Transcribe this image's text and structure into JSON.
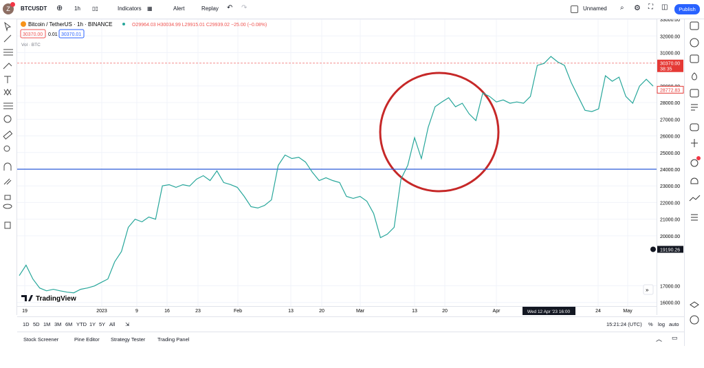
{
  "toolbar": {
    "avatar": "Z",
    "symbol": "BTCUSDT",
    "interval": "1h",
    "indicators": "Indicators",
    "alert": "Alert",
    "replay": "Replay",
    "layout_name": "Unnamed",
    "publish": "Publish"
  },
  "legend": {
    "title": "Bitcoin / TetherUS · 1h · BINANCE",
    "ohlc": "O29964.03 H30034.99 L29915.01 C29939.02 −25.00 (−0.08%)",
    "bid": "30370.00",
    "spread": "0.01",
    "ask": "30370.01",
    "volume": "Vol · BTC"
  },
  "logo": "TradingView",
  "chart_data": {
    "type": "line",
    "color": "#26a69a",
    "values": [
      17610,
      18240,
      17410,
      16870,
      16700,
      16790,
      16700,
      16620,
      16580,
      16790,
      16870,
      16990,
      17200,
      17410,
      18440,
      19060,
      20510,
      21000,
      20840,
      21130,
      21000,
      23000,
      23070,
      22910,
      23070,
      22990,
      23400,
      23610,
      23320,
      23900,
      23200,
      23080,
      22910,
      22370,
      21750,
      21670,
      21830,
      22160,
      24230,
      24850,
      24640,
      24720,
      24430,
      23820,
      23320,
      23490,
      23320,
      23200,
      22370,
      22250,
      22370,
      22080,
      21340,
      19890,
      20100,
      20510,
      23400,
      24230,
      25890,
      24640,
      26510,
      27750,
      28040,
      28290,
      27750,
      27960,
      27330,
      26920,
      28570,
      28370,
      28040,
      28160,
      27960,
      28040,
      27960,
      28370,
      30230,
      30350,
      30770,
      30440,
      30230,
      29190,
      28370,
      27540,
      27460,
      27620,
      29610,
      29280,
      29530,
      28370,
      27960,
      28990,
      29400,
      28990
    ],
    "ylim": [
      15700,
      33250
    ],
    "yticks": [
      {
        "value": 16000,
        "label": "16000.00"
      },
      {
        "value": 17000,
        "label": "17000.00"
      },
      {
        "value": 20000,
        "label": "20000.00"
      },
      {
        "value": 21000,
        "label": "21000.00"
      },
      {
        "value": 22000,
        "label": "22000.00"
      },
      {
        "value": 23000,
        "label": "23000.00"
      },
      {
        "value": 24000,
        "label": "24000.00"
      },
      {
        "value": 25000,
        "label": "25000.00"
      },
      {
        "value": 26000,
        "label": "26000.00"
      },
      {
        "value": 27000,
        "label": "27000.00"
      },
      {
        "value": 28000,
        "label": "28000.00"
      },
      {
        "value": 29000,
        "label": "29000.00"
      },
      {
        "value": 31000,
        "label": "31000.00"
      },
      {
        "value": 32000,
        "label": "32000.00"
      },
      {
        "value": 33000,
        "label": "33000.00"
      }
    ],
    "x_tick_labels": [
      "19",
      "2023",
      "9",
      "16",
      "23",
      "Feb",
      "13",
      "20",
      "Mar",
      "13",
      "20",
      "Apr",
      "24",
      "May"
    ],
    "crosshair_date": "Wed 12 Apr '23   16:00",
    "hline": {
      "value": 24000,
      "color": "#2a5bd7"
    },
    "price_line": {
      "value": 30370,
      "color": "#f28b8b"
    },
    "price_labels": [
      {
        "value": 30370,
        "label": "30370.00",
        "sub": "38:35",
        "color": "#e53935"
      },
      {
        "value": 28772.83,
        "label": "28772.83",
        "color": "#ffffff"
      },
      {
        "value": 19190.26,
        "label": "19190.26",
        "color": "#131722"
      }
    ],
    "grid": true
  },
  "ranges": [
    "1D",
    "5D",
    "1M",
    "3M",
    "6M",
    "YTD",
    "1Y",
    "5Y",
    "All"
  ],
  "status": {
    "time": "15:21:24 (UTC)",
    "percent": "%",
    "log": "log",
    "auto": "auto"
  },
  "tabs": [
    "Stock Screener",
    "Pine Editor",
    "Strategy Tester",
    "Trading Panel"
  ]
}
